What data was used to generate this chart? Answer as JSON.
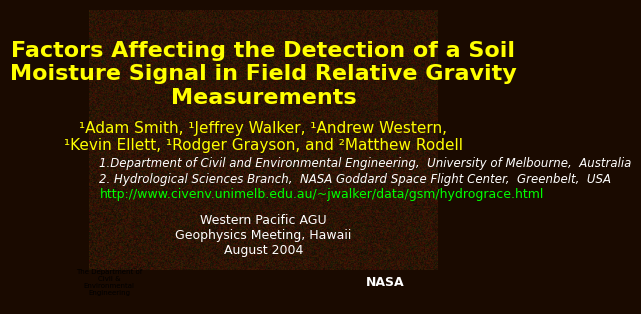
{
  "title_line1": "Factors Affecting the Detection of a Soil",
  "title_line2": "Moisture Signal in Field Relative Gravity",
  "title_line3": "Measurements",
  "title_color": "#FFFF00",
  "title_fontsize": 16,
  "authors_line1": "¹Adam Smith, ¹Jeffrey Walker, ¹Andrew Western,",
  "authors_line2": "¹Kevin Ellett, ¹Rodger Grayson, and ²Matthew Rodell",
  "authors_color": "#FFFF00",
  "authors_fontsize": 11,
  "affil1": "1.Department of Civil and Environmental Engineering,  University of Melbourne,  Australia",
  "affil2": "2. Hydrological Sciences Branch,  NASA Goddard Space Flight Center,  Greenbelt,  USA",
  "affil_color": "#FFFFFF",
  "affil_fontsize": 8.5,
  "url": "http://www.civenv.unimelb.edu.au/~jwalker/data/gsm/hydrograce.html",
  "url_color": "#00FF00",
  "url_fontsize": 9,
  "conference_line1": "Western Pacific AGU",
  "conference_line2": "Geophysics Meeting, Hawaii",
  "conference_line3": "August 2004",
  "conference_color": "#FFFFFF",
  "conference_fontsize": 9,
  "bg_color": "#1a0a00"
}
